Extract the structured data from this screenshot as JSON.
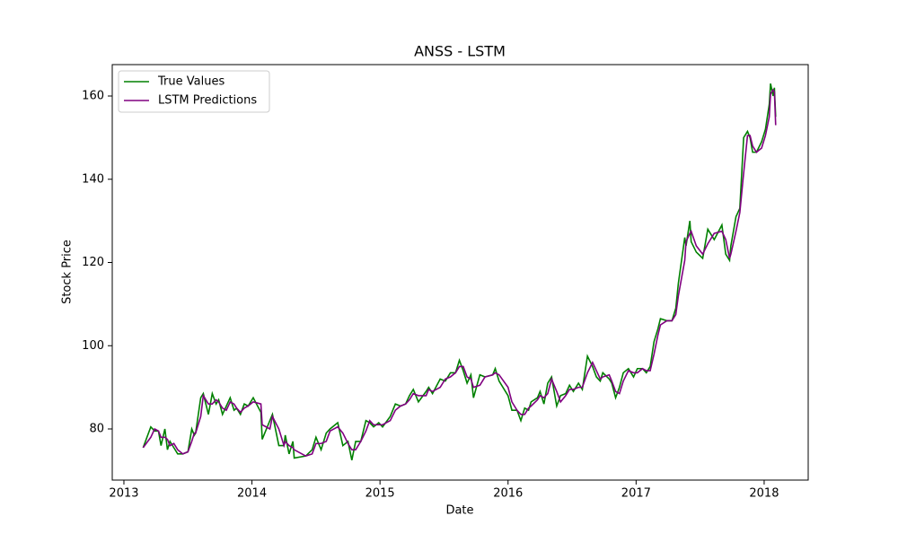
{
  "chart_data": {
    "type": "line",
    "title": "ANSS - LSTM",
    "xlabel": "Date",
    "ylabel": "Stock Price",
    "x": [
      2013.15,
      2013.21,
      2013.24,
      2013.27,
      2013.29,
      2013.32,
      2013.34,
      2013.36,
      2013.39,
      2013.42,
      2013.46,
      2013.5,
      2013.53,
      2013.55,
      2013.56,
      2013.6,
      2013.62,
      2013.66,
      2013.69,
      2013.72,
      2013.74,
      2013.77,
      2013.8,
      2013.83,
      2013.86,
      2013.88,
      2013.91,
      2013.94,
      2013.97,
      2014.01,
      2014.07,
      2014.08,
      2014.14,
      2014.16,
      2014.21,
      2014.25,
      2014.26,
      2014.29,
      2014.32,
      2014.33,
      2014.42,
      2014.47,
      2014.5,
      2014.54,
      2014.58,
      2014.61,
      2014.67,
      2014.71,
      2014.75,
      2014.78,
      2014.81,
      2014.85,
      2014.89,
      2014.92,
      2014.95,
      2014.99,
      2015.02,
      2015.08,
      2015.12,
      2015.16,
      2015.2,
      2015.23,
      2015.26,
      2015.3,
      2015.36,
      2015.38,
      2015.41,
      2015.47,
      2015.51,
      2015.55,
      2015.59,
      2015.62,
      2015.65,
      2015.68,
      2015.71,
      2015.73,
      2015.78,
      2015.82,
      2015.88,
      2015.9,
      2015.93,
      2016.0,
      2016.03,
      2016.07,
      2016.1,
      2016.13,
      2016.16,
      2016.18,
      2016.23,
      2016.25,
      2016.28,
      2016.31,
      2016.34,
      2016.38,
      2016.41,
      2016.45,
      2016.48,
      2016.51,
      2016.55,
      2016.58,
      2016.62,
      2016.66,
      2016.69,
      2016.72,
      2016.74,
      2016.79,
      2016.81,
      2016.84,
      2016.87,
      2016.9,
      2016.94,
      2016.98,
      2017.01,
      2017.05,
      2017.08,
      2017.11,
      2017.14,
      2017.17,
      2017.19,
      2017.24,
      2017.28,
      2017.31,
      2017.33,
      2017.38,
      2017.39,
      2017.42,
      2017.43,
      2017.47,
      2017.52,
      2017.56,
      2017.61,
      2017.67,
      2017.7,
      2017.73,
      2017.74,
      2017.78,
      2017.81,
      2017.84,
      2017.87,
      2017.89,
      2017.91,
      2017.94,
      2017.98,
      2018.01,
      2018.04,
      2018.05,
      2018.07,
      2018.08,
      2018.09
    ],
    "series": [
      {
        "name": "True Values",
        "color": "#008000",
        "values": [
          75.5,
          80.5,
          79.5,
          79.5,
          76,
          80,
          75,
          77,
          75.5,
          74,
          74,
          74.5,
          80,
          78.5,
          79,
          87.5,
          88.5,
          83.5,
          88.5,
          86,
          87,
          83.5,
          85.5,
          87.5,
          84.5,
          85,
          83.5,
          86,
          85.5,
          87.5,
          84,
          77.5,
          82,
          83.5,
          76,
          76,
          78.5,
          74,
          77,
          73,
          73.5,
          75,
          78,
          75,
          79,
          80,
          81.5,
          76,
          77,
          72.5,
          77,
          77,
          82,
          81.5,
          80.5,
          81.5,
          80.5,
          83,
          86,
          85.5,
          86,
          88,
          89.5,
          86.5,
          89,
          90,
          88.5,
          92,
          91.5,
          93.5,
          93.5,
          96.5,
          94,
          91,
          93,
          87.5,
          93,
          92.5,
          93,
          94.5,
          91.5,
          88,
          84.5,
          84.5,
          82,
          85,
          84.5,
          86.5,
          87.5,
          89,
          86,
          91,
          92.5,
          85.5,
          88,
          88.5,
          90.5,
          89,
          91,
          89.5,
          97.5,
          95,
          92.5,
          91.5,
          93.5,
          92,
          91,
          87.5,
          90,
          93.5,
          94.5,
          92.5,
          94.5,
          94.5,
          93.5,
          95,
          101,
          104,
          106.5,
          106,
          106,
          109,
          115,
          126,
          124,
          130,
          125,
          122.5,
          121,
          128,
          125.5,
          129,
          122,
          120.5,
          124,
          131,
          133,
          150,
          151.5,
          150,
          146.5,
          146.5,
          149,
          152,
          158,
          163,
          160,
          162,
          155
        ]
      },
      {
        "name": "LSTM Predictions",
        "color": "#800080",
        "values": [
          75.5,
          78,
          80,
          79.5,
          78,
          78,
          77.5,
          76,
          76.5,
          75,
          74,
          74.5,
          77,
          79,
          79,
          83,
          88,
          86,
          86,
          87,
          86.5,
          85,
          84.5,
          86.5,
          86,
          85,
          84,
          85,
          85.5,
          86.5,
          86,
          81,
          80,
          83,
          80,
          76,
          77,
          76,
          75.5,
          75,
          73.5,
          74,
          76.5,
          76.5,
          77,
          79.5,
          80.5,
          79,
          76.5,
          75,
          75,
          77,
          79.5,
          82,
          81,
          81,
          81,
          82,
          84.5,
          85.5,
          86,
          87,
          88.5,
          88,
          88,
          89.5,
          89,
          90,
          92,
          92.5,
          93.5,
          95,
          95,
          92.5,
          92,
          90,
          90.5,
          92.5,
          93,
          93.5,
          93,
          90,
          86.5,
          84.5,
          83.5,
          83.5,
          85,
          85.5,
          87,
          88,
          87.5,
          88.5,
          92,
          89,
          86.5,
          88,
          89.5,
          89.5,
          90,
          90,
          93.5,
          96,
          94,
          92,
          92.5,
          93,
          91.5,
          89,
          88.5,
          91.5,
          94,
          93.5,
          93.5,
          94.5,
          94,
          94,
          98,
          102.5,
          105,
          106,
          106,
          107.5,
          112,
          120.5,
          125,
          127,
          127.5,
          124,
          122,
          124.5,
          127,
          127.5,
          125.5,
          121,
          122,
          127.5,
          132,
          141.5,
          150.5,
          150.5,
          148,
          146.5,
          147.5,
          150.5,
          155,
          160.5,
          161.5,
          161,
          153
        ]
      }
    ],
    "xlim": [
      2012.909,
      2018.344
    ],
    "xticks": [
      2013,
      2014,
      2015,
      2016,
      2017,
      2018
    ],
    "ylim": [
      67.71,
      167.55
    ],
    "yticks": [
      80,
      100,
      120,
      140,
      160
    ],
    "grid": false,
    "legend": "upper left"
  }
}
